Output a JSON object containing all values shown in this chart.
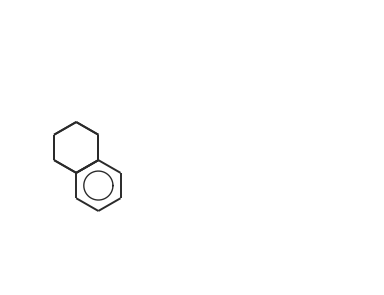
{
  "bg_color": "#ffffff",
  "bond_color": "#2a2a2a",
  "n_color": "#2a2a9a",
  "s_color": "#8b6000",
  "linewidth": 1.4,
  "figsize": [
    3.84,
    2.95
  ],
  "dpi": 100
}
